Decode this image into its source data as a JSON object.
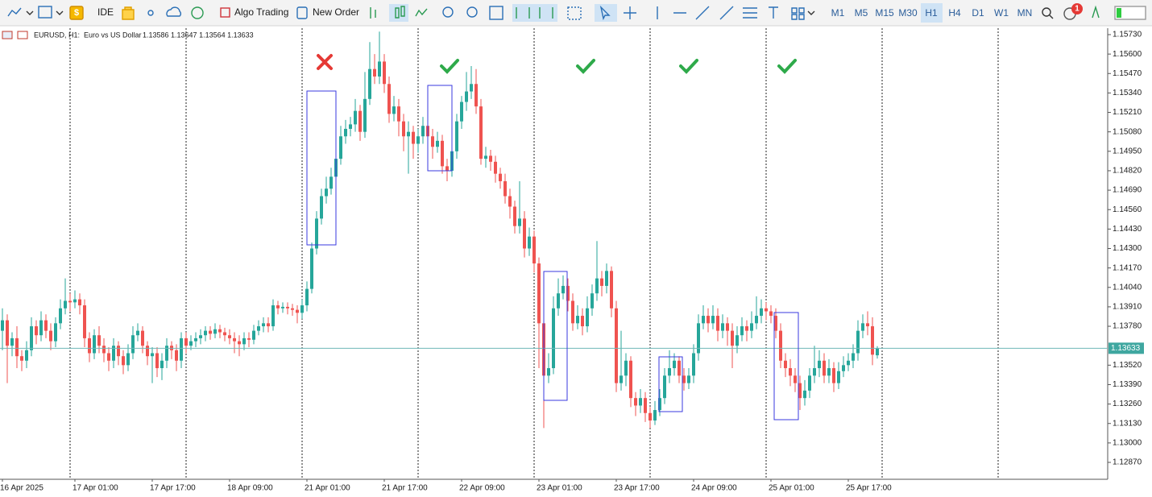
{
  "toolbar": {
    "items": [
      "IDE",
      "Algo Trading",
      "New Order"
    ],
    "timeframes": [
      "M1",
      "M5",
      "M15",
      "M30",
      "H1",
      "H4",
      "D1",
      "W1",
      "MN"
    ],
    "active_timeframe": "H1",
    "notifications": "1"
  },
  "chart_data": {
    "type": "candlestick",
    "symbol": "EURUSD, H1:",
    "description": "Euro vs US Dollar",
    "ohlc_text": "1.13586 1.13647 1.13564 1.13633",
    "colors": {
      "up": "#26a69a",
      "down": "#ef5350"
    },
    "grid": false,
    "ylim": [
      1.12757,
      1.15773
    ],
    "yticks": [
      {
        "value": 1.1573,
        "label": "1.15730"
      },
      {
        "value": 1.156,
        "label": "1.15600"
      },
      {
        "value": 1.1547,
        "label": "1.15470"
      },
      {
        "value": 1.1534,
        "label": "1.15340"
      },
      {
        "value": 1.1521,
        "label": "1.15210"
      },
      {
        "value": 1.1508,
        "label": "1.15080"
      },
      {
        "value": 1.1495,
        "label": "1.14950"
      },
      {
        "value": 1.1482,
        "label": "1.14820"
      },
      {
        "value": 1.1469,
        "label": "1.14690"
      },
      {
        "value": 1.1456,
        "label": "1.14560"
      },
      {
        "value": 1.1443,
        "label": "1.14430"
      },
      {
        "value": 1.143,
        "label": "1.14300"
      },
      {
        "value": 1.1417,
        "label": "1.14170"
      },
      {
        "value": 1.1404,
        "label": "1.14040"
      },
      {
        "value": 1.1391,
        "label": "1.13910"
      },
      {
        "value": 1.1378,
        "label": "1.13780"
      },
      {
        "value": 1.1352,
        "label": "1.13520"
      },
      {
        "value": 1.1339,
        "label": "1.13390"
      },
      {
        "value": 1.1326,
        "label": "1.13260"
      },
      {
        "value": 1.1313,
        "label": "1.13130"
      },
      {
        "value": 1.13,
        "label": "1.13000"
      },
      {
        "value": 1.1287,
        "label": "1.12870"
      }
    ],
    "last_price": {
      "value": 1.13633,
      "label": "1.13633"
    },
    "categories": [
      "16 Apr 2025",
      null,
      null,
      null,
      null,
      null,
      null,
      null,
      null,
      null,
      null,
      null,
      null,
      null,
      null,
      "17 Apr 01:00",
      null,
      null,
      null,
      null,
      null,
      null,
      null,
      null,
      null,
      null,
      null,
      null,
      null,
      null,
      null,
      "17 Apr 17:00",
      null,
      null,
      null,
      null,
      null,
      null,
      null,
      null,
      null,
      null,
      null,
      null,
      null,
      null,
      null,
      "18 Apr 09:00",
      null,
      null,
      null,
      null,
      null,
      null,
      null,
      null,
      null,
      null,
      null,
      null,
      null,
      null,
      null,
      "21 Apr 01:00",
      null,
      null,
      null,
      null,
      null,
      null,
      null,
      null,
      null,
      null,
      null,
      null,
      null,
      null,
      null,
      "21 Apr 17:00",
      null,
      null,
      null,
      null,
      null,
      null,
      null,
      null,
      null,
      null,
      null,
      null,
      null,
      null,
      null,
      "22 Apr 09:00",
      null,
      null,
      null,
      null,
      null,
      null,
      null,
      null,
      null,
      null,
      null,
      null,
      null,
      null,
      null,
      "23 Apr 01:00",
      null,
      null,
      null,
      null,
      null,
      null,
      null,
      null,
      null,
      null,
      null,
      null,
      null,
      null,
      null,
      "23 Apr 17:00",
      null,
      null,
      null,
      null,
      null,
      null,
      null,
      null,
      null,
      null,
      null,
      null,
      null,
      null,
      null,
      "24 Apr 09:00",
      null,
      null,
      null,
      null,
      null,
      null,
      null,
      null,
      null,
      null,
      null,
      null,
      null,
      null,
      null,
      "25 Apr 01:00",
      null,
      null,
      null,
      null,
      null,
      null,
      null,
      null,
      null,
      null,
      null,
      null,
      null,
      null,
      null,
      "25 Apr 17:00",
      null,
      null,
      null,
      null,
      null,
      null
    ],
    "candles": [
      [
        1.1375,
        1.139,
        1.1362,
        1.1382
      ],
      [
        1.1382,
        1.1386,
        1.134,
        1.1365
      ],
      [
        1.1365,
        1.1374,
        1.1358,
        1.137
      ],
      [
        1.137,
        1.1378,
        1.135,
        1.1358
      ],
      [
        1.1358,
        1.1362,
        1.1348,
        1.1355
      ],
      [
        1.1355,
        1.1368,
        1.135,
        1.1362
      ],
      [
        1.1362,
        1.1384,
        1.1358,
        1.1378
      ],
      [
        1.1378,
        1.1382,
        1.1366,
        1.1372
      ],
      [
        1.1372,
        1.1388,
        1.1368,
        1.1382
      ],
      [
        1.1382,
        1.1386,
        1.137,
        1.1375
      ],
      [
        1.1375,
        1.138,
        1.1362,
        1.1368
      ],
      [
        1.1368,
        1.1384,
        1.1364,
        1.138
      ],
      [
        1.138,
        1.1396,
        1.1376,
        1.139
      ],
      [
        1.139,
        1.141,
        1.1386,
        1.1395
      ],
      [
        1.1395,
        1.14,
        1.1388,
        1.1394
      ],
      [
        1.1394,
        1.1402,
        1.139,
        1.1396
      ],
      [
        1.1396,
        1.14,
        1.1386,
        1.1392
      ],
      [
        1.1392,
        1.1396,
        1.1364,
        1.137
      ],
      [
        1.137,
        1.1374,
        1.1354,
        1.136
      ],
      [
        1.136,
        1.1376,
        1.1356,
        1.1372
      ],
      [
        1.1372,
        1.1378,
        1.136,
        1.1365
      ],
      [
        1.1365,
        1.137,
        1.1354,
        1.136
      ],
      [
        1.136,
        1.1364,
        1.1348,
        1.1355
      ],
      [
        1.1355,
        1.137,
        1.135,
        1.1365
      ],
      [
        1.1365,
        1.1368,
        1.1352,
        1.1358
      ],
      [
        1.1358,
        1.1362,
        1.1346,
        1.1352
      ],
      [
        1.1352,
        1.1366,
        1.1348,
        1.136
      ],
      [
        1.136,
        1.1378,
        1.1356,
        1.1372
      ],
      [
        1.1372,
        1.138,
        1.1368,
        1.1375
      ],
      [
        1.1375,
        1.1378,
        1.136,
        1.1365
      ],
      [
        1.1365,
        1.1368,
        1.1352,
        1.1358
      ],
      [
        1.1358,
        1.1364,
        1.134,
        1.136
      ],
      [
        1.136,
        1.1364,
        1.1344,
        1.135
      ],
      [
        1.135,
        1.136,
        1.1342,
        1.1355
      ],
      [
        1.1355,
        1.137,
        1.135,
        1.1365
      ],
      [
        1.1365,
        1.1368,
        1.1356,
        1.1362
      ],
      [
        1.1362,
        1.1366,
        1.1348,
        1.1355
      ],
      [
        1.1355,
        1.1374,
        1.135,
        1.137
      ],
      [
        1.137,
        1.1374,
        1.136,
        1.1365
      ],
      [
        1.1365,
        1.1372,
        1.1362,
        1.1368
      ],
      [
        1.1368,
        1.1374,
        1.1364,
        1.137
      ],
      [
        1.137,
        1.1376,
        1.1366,
        1.1372
      ],
      [
        1.1372,
        1.1378,
        1.1368,
        1.1375
      ],
      [
        1.1375,
        1.1378,
        1.1369,
        1.1373
      ],
      [
        1.1373,
        1.138,
        1.137,
        1.1376
      ],
      [
        1.1376,
        1.1379,
        1.137,
        1.1374
      ],
      [
        1.1374,
        1.1377,
        1.1368,
        1.1372
      ],
      [
        1.1372,
        1.1376,
        1.1366,
        1.137
      ],
      [
        1.137,
        1.1374,
        1.136,
        1.1368
      ],
      [
        1.1368,
        1.1372,
        1.1358,
        1.1366
      ],
      [
        1.1366,
        1.1374,
        1.1362,
        1.137
      ],
      [
        1.137,
        1.1374,
        1.1364,
        1.1369
      ],
      [
        1.1369,
        1.1379,
        1.1366,
        1.1375
      ],
      [
        1.1375,
        1.1382,
        1.1372,
        1.1378
      ],
      [
        1.1378,
        1.1384,
        1.1374,
        1.138
      ],
      [
        1.138,
        1.1384,
        1.1374,
        1.1378
      ],
      [
        1.1378,
        1.1396,
        1.1375,
        1.1392
      ],
      [
        1.1392,
        1.1395,
        1.1386,
        1.139
      ],
      [
        1.139,
        1.1394,
        1.1387,
        1.1391
      ],
      [
        1.1391,
        1.1394,
        1.1386,
        1.139
      ],
      [
        1.139,
        1.1393,
        1.1385,
        1.1389
      ],
      [
        1.1389,
        1.1392,
        1.138,
        1.1387
      ],
      [
        1.1387,
        1.1396,
        1.1383,
        1.1392
      ],
      [
        1.1392,
        1.1408,
        1.1388,
        1.1403
      ],
      [
        1.1403,
        1.1434,
        1.14,
        1.143
      ],
      [
        1.143,
        1.1455,
        1.1426,
        1.145
      ],
      [
        1.145,
        1.147,
        1.1446,
        1.1465
      ],
      [
        1.1465,
        1.1478,
        1.146,
        1.147
      ],
      [
        1.147,
        1.1484,
        1.1466,
        1.1478
      ],
      [
        1.1478,
        1.1496,
        1.1474,
        1.149
      ],
      [
        1.149,
        1.1512,
        1.1486,
        1.1505
      ],
      [
        1.1505,
        1.1516,
        1.15,
        1.151
      ],
      [
        1.151,
        1.1518,
        1.1505,
        1.1513
      ],
      [
        1.1513,
        1.153,
        1.1508,
        1.1522
      ],
      [
        1.1522,
        1.1526,
        1.1502,
        1.1508
      ],
      [
        1.1508,
        1.1548,
        1.1504,
        1.153
      ],
      [
        1.153,
        1.1568,
        1.1526,
        1.155
      ],
      [
        1.155,
        1.156,
        1.154,
        1.1545
      ],
      [
        1.1545,
        1.1575,
        1.154,
        1.1555
      ],
      [
        1.1555,
        1.156,
        1.1534,
        1.154
      ],
      [
        1.154,
        1.1545,
        1.1514,
        1.152
      ],
      [
        1.152,
        1.1532,
        1.1515,
        1.1525
      ],
      [
        1.1525,
        1.153,
        1.1505,
        1.1515
      ],
      [
        1.1515,
        1.152,
        1.1495,
        1.1505
      ],
      [
        1.1505,
        1.1515,
        1.148,
        1.1508
      ],
      [
        1.1508,
        1.1512,
        1.149,
        1.15
      ],
      [
        1.15,
        1.151,
        1.1494,
        1.1505
      ],
      [
        1.1505,
        1.1518,
        1.15,
        1.1512
      ],
      [
        1.1512,
        1.1516,
        1.15,
        1.1505
      ],
      [
        1.1505,
        1.151,
        1.149,
        1.1498
      ],
      [
        1.1498,
        1.1508,
        1.1494,
        1.1502
      ],
      [
        1.1502,
        1.1506,
        1.148,
        1.1485
      ],
      [
        1.1485,
        1.149,
        1.1475,
        1.1482
      ],
      [
        1.1482,
        1.15,
        1.1478,
        1.1495
      ],
      [
        1.1495,
        1.152,
        1.149,
        1.1515
      ],
      [
        1.1515,
        1.1532,
        1.151,
        1.1528
      ],
      [
        1.1528,
        1.1548,
        1.1522,
        1.1535
      ],
      [
        1.1535,
        1.1552,
        1.153,
        1.154
      ],
      [
        1.154,
        1.155,
        1.152,
        1.1525
      ],
      [
        1.1525,
        1.153,
        1.1486,
        1.149
      ],
      [
        1.149,
        1.1498,
        1.1484,
        1.1492
      ],
      [
        1.1492,
        1.1496,
        1.1482,
        1.1488
      ],
      [
        1.1488,
        1.1492,
        1.1474,
        1.148
      ],
      [
        1.148,
        1.1484,
        1.147,
        1.1475
      ],
      [
        1.1475,
        1.148,
        1.146,
        1.1465
      ],
      [
        1.1465,
        1.147,
        1.145,
        1.1458
      ],
      [
        1.1458,
        1.1462,
        1.144,
        1.1445
      ],
      [
        1.1445,
        1.1475,
        1.144,
        1.145
      ],
      [
        1.145,
        1.1455,
        1.1424,
        1.143
      ],
      [
        1.143,
        1.1444,
        1.1425,
        1.1438
      ],
      [
        1.1438,
        1.1442,
        1.1414,
        1.142
      ],
      [
        1.142,
        1.1424,
        1.135,
        1.138
      ],
      [
        1.138,
        1.1385,
        1.131,
        1.1345
      ],
      [
        1.1345,
        1.136,
        1.134,
        1.135
      ],
      [
        1.135,
        1.1398,
        1.1346,
        1.139
      ],
      [
        1.139,
        1.141,
        1.1385,
        1.14
      ],
      [
        1.14,
        1.1412,
        1.1396,
        1.1405
      ],
      [
        1.1405,
        1.141,
        1.1388,
        1.1395
      ],
      [
        1.1395,
        1.14,
        1.1375,
        1.138
      ],
      [
        1.138,
        1.1392,
        1.1376,
        1.1385
      ],
      [
        1.1385,
        1.139,
        1.1372,
        1.1378
      ],
      [
        1.1378,
        1.1398,
        1.1374,
        1.139
      ],
      [
        1.139,
        1.1406,
        1.1385,
        1.14
      ],
      [
        1.14,
        1.1435,
        1.1395,
        1.141
      ],
      [
        1.141,
        1.1415,
        1.1398,
        1.1405
      ],
      [
        1.1405,
        1.142,
        1.14,
        1.1415
      ],
      [
        1.1415,
        1.1418,
        1.1384,
        1.139
      ],
      [
        1.139,
        1.1395,
        1.1334,
        1.134
      ],
      [
        1.134,
        1.1375,
        1.1335,
        1.1345
      ],
      [
        1.1345,
        1.136,
        1.1338,
        1.1355
      ],
      [
        1.1355,
        1.1358,
        1.1324,
        1.133
      ],
      [
        1.133,
        1.1334,
        1.1318,
        1.1325
      ],
      [
        1.1325,
        1.1336,
        1.132,
        1.133
      ],
      [
        1.133,
        1.1334,
        1.1314,
        1.132
      ],
      [
        1.132,
        1.1324,
        1.131,
        1.1315
      ],
      [
        1.1315,
        1.1328,
        1.1312,
        1.1322
      ],
      [
        1.1322,
        1.1336,
        1.1318,
        1.133
      ],
      [
        1.133,
        1.135,
        1.1326,
        1.1345
      ],
      [
        1.1345,
        1.1362,
        1.134,
        1.135
      ],
      [
        1.135,
        1.136,
        1.1345,
        1.1355
      ],
      [
        1.1355,
        1.1358,
        1.134,
        1.1345
      ],
      [
        1.1345,
        1.135,
        1.1335,
        1.134
      ],
      [
        1.134,
        1.135,
        1.1336,
        1.1345
      ],
      [
        1.1345,
        1.1366,
        1.134,
        1.136
      ],
      [
        1.136,
        1.1386,
        1.1355,
        1.138
      ],
      [
        1.138,
        1.1392,
        1.1376,
        1.1385
      ],
      [
        1.1385,
        1.139,
        1.1374,
        1.138
      ],
      [
        1.138,
        1.1392,
        1.1376,
        1.1385
      ],
      [
        1.1385,
        1.139,
        1.1368,
        1.1375
      ],
      [
        1.1375,
        1.1386,
        1.137,
        1.138
      ],
      [
        1.138,
        1.1384,
        1.1365,
        1.1375
      ],
      [
        1.1375,
        1.138,
        1.135,
        1.1365
      ],
      [
        1.1365,
        1.1378,
        1.136,
        1.1372
      ],
      [
        1.1372,
        1.1384,
        1.1368,
        1.1378
      ],
      [
        1.1378,
        1.1382,
        1.1368,
        1.1375
      ],
      [
        1.1375,
        1.1388,
        1.137,
        1.138
      ],
      [
        1.138,
        1.1398,
        1.1376,
        1.1385
      ],
      [
        1.1385,
        1.1396,
        1.138,
        1.139
      ],
      [
        1.139,
        1.1394,
        1.1382,
        1.1388
      ],
      [
        1.1388,
        1.1392,
        1.138,
        1.1385
      ],
      [
        1.1385,
        1.139,
        1.137,
        1.1375
      ],
      [
        1.1375,
        1.138,
        1.135,
        1.1355
      ],
      [
        1.1355,
        1.136,
        1.1344,
        1.135
      ],
      [
        1.135,
        1.1356,
        1.1338,
        1.1345
      ],
      [
        1.1345,
        1.135,
        1.1334,
        1.134
      ],
      [
        1.134,
        1.1345,
        1.1322,
        1.133
      ],
      [
        1.133,
        1.1342,
        1.1325,
        1.1335
      ],
      [
        1.1335,
        1.135,
        1.133,
        1.1345
      ],
      [
        1.1345,
        1.1365,
        1.134,
        1.135
      ],
      [
        1.135,
        1.1362,
        1.1344,
        1.1355
      ],
      [
        1.1355,
        1.136,
        1.134,
        1.1345
      ],
      [
        1.1345,
        1.1356,
        1.134,
        1.135
      ],
      [
        1.135,
        1.1354,
        1.1334,
        1.134
      ],
      [
        1.134,
        1.1354,
        1.1336,
        1.1348
      ],
      [
        1.1348,
        1.1358,
        1.1344,
        1.1352
      ],
      [
        1.1352,
        1.136,
        1.1348,
        1.1355
      ],
      [
        1.1355,
        1.1366,
        1.135,
        1.136
      ],
      [
        1.136,
        1.1382,
        1.1355,
        1.1375
      ],
      [
        1.1375,
        1.1386,
        1.137,
        1.138
      ],
      [
        1.138,
        1.1388,
        1.1372,
        1.1378
      ],
      [
        1.1378,
        1.1384,
        1.1352,
        1.1359
      ],
      [
        1.13586,
        1.13647,
        1.13564,
        1.13633
      ]
    ]
  }
}
